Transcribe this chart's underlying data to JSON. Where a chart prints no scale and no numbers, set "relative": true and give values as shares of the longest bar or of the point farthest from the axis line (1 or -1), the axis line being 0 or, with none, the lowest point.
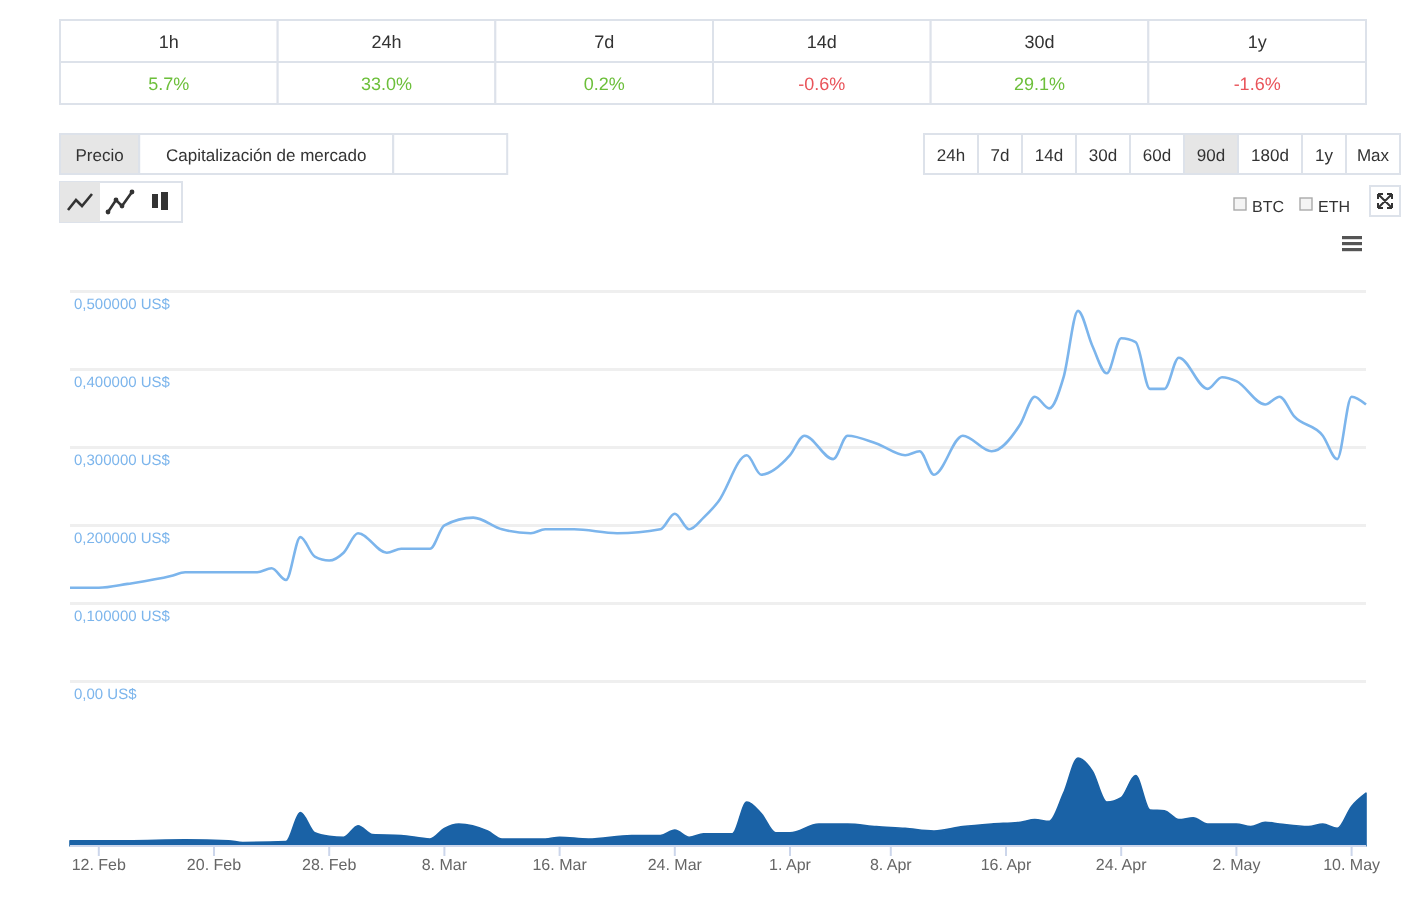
{
  "chart_data": [
    {
      "type": "other",
      "categories": [
        "1h",
        "24h",
        "7d",
        "14d",
        "30d",
        "1y"
      ],
      "values": [
        5.7,
        33.0,
        0.2,
        -0.6,
        29.1,
        -1.6
      ],
      "value_labels": [
        "5.7%",
        "33.0%",
        "0.2%",
        "-0.6%",
        "29.1%",
        "-1.6%"
      ]
    },
    {
      "type": "other",
      "annotations": [
        "Precio",
        "Capitalización de mercado",
        "24h",
        "7d",
        "14d",
        "30d",
        "60d",
        "90d",
        "180d",
        "1y",
        "Max",
        "BTC",
        "ETH"
      ]
    },
    {
      "type": "line",
      "color": "#7cb5ec",
      "xlim": [
        "--02-10",
        "--05-11"
      ],
      "ylim": [
        0,
        0.5
      ],
      "grid": "y",
      "tick_labels": "y",
      "yticks": [
        {
          "value": 0,
          "label": "0,00 US$"
        },
        {
          "value": 0.1,
          "label": "0,100000 US$"
        },
        {
          "value": 0.2,
          "label": "0,200000 US$"
        },
        {
          "value": 0.3,
          "label": "0,300000 US$"
        },
        {
          "value": 0.4,
          "label": "0,400000 US$"
        },
        {
          "value": 0.5,
          "label": "0,500000 US$"
        }
      ],
      "x": [
        "--02-10",
        "--02-12",
        "--02-14",
        "--02-17",
        "--02-18",
        "--02-20",
        "--02-23",
        "--02-24",
        "--02-25",
        "--02-26",
        "--02-27",
        "--02-28",
        "--03-01",
        "--03-02",
        "--03-04",
        "--03-05",
        "--03-07",
        "--03-08",
        "--03-10",
        "--03-12",
        "--03-14",
        "--03-15",
        "--03-17",
        "--03-20",
        "--03-23",
        "--03-24",
        "--03-25",
        "--03-26",
        "--03-27",
        "--03-29",
        "--03-30",
        "--04-01",
        "--04-02",
        "--04-04",
        "--04-05",
        "--04-07",
        "--04-09",
        "--04-10",
        "--04-11",
        "--04-13",
        "--04-15",
        "--04-17",
        "--04-18",
        "--04-19",
        "--04-20",
        "--04-21",
        "--04-22",
        "--04-23",
        "--04-24",
        "--04-25",
        "--04-26",
        "--04-27",
        "--04-28",
        "--04-30",
        "--05-01",
        "--05-02",
        "--05-04",
        "--05-05",
        "--05-06",
        "--05-08",
        "--05-09",
        "--05-10",
        "--05-11"
      ],
      "values": [
        0.12,
        0.12,
        0.125,
        0.135,
        0.14,
        0.14,
        0.14,
        0.145,
        0.13,
        0.185,
        0.16,
        0.155,
        0.165,
        0.19,
        0.165,
        0.17,
        0.17,
        0.2,
        0.21,
        0.195,
        0.19,
        0.195,
        0.195,
        0.19,
        0.195,
        0.215,
        0.195,
        0.21,
        0.23,
        0.29,
        0.265,
        0.29,
        0.315,
        0.285,
        0.315,
        0.305,
        0.29,
        0.295,
        0.265,
        0.315,
        0.295,
        0.33,
        0.365,
        0.35,
        0.39,
        0.475,
        0.43,
        0.395,
        0.44,
        0.435,
        0.375,
        0.375,
        0.415,
        0.375,
        0.39,
        0.385,
        0.355,
        0.365,
        0.34,
        0.315,
        0.285,
        0.365,
        0.355
      ]
    },
    {
      "type": "area",
      "relative": true,
      "color": "#1a62a6",
      "xlim": [
        "--02-10",
        "--05-11"
      ],
      "tick_labels": "x",
      "xticks": [
        {
          "value": "--02-12",
          "label": "12. Feb"
        },
        {
          "value": "--02-20",
          "label": "20. Feb"
        },
        {
          "value": "--02-28",
          "label": "28. Feb"
        },
        {
          "value": "--03-08",
          "label": "8. Mar"
        },
        {
          "value": "--03-16",
          "label": "16. Mar"
        },
        {
          "value": "--03-24",
          "label": "24. Mar"
        },
        {
          "value": "--04-01",
          "label": "1. Apr"
        },
        {
          "value": "--04-08",
          "label": "8. Apr"
        },
        {
          "value": "--04-16",
          "label": "16. Apr"
        },
        {
          "value": "--04-24",
          "label": "24. Apr"
        },
        {
          "value": "--05-02",
          "label": "2. May"
        },
        {
          "value": "--05-10",
          "label": "10. May"
        }
      ],
      "x": [
        "--02-10",
        "--02-14",
        "--02-18",
        "--02-21",
        "--02-22",
        "--02-25",
        "--02-26",
        "--02-27",
        "--02-28",
        "--03-01",
        "--03-02",
        "--03-03",
        "--03-05",
        "--03-07",
        "--03-08",
        "--03-09",
        "--03-11",
        "--03-12",
        "--03-15",
        "--03-16",
        "--03-18",
        "--03-21",
        "--03-23",
        "--03-24",
        "--03-25",
        "--03-26",
        "--03-28",
        "--03-29",
        "--03-30",
        "--03-31",
        "--04-01",
        "--04-03",
        "--04-05",
        "--04-07",
        "--04-09",
        "--04-11",
        "--04-13",
        "--04-15",
        "--04-17",
        "--04-18",
        "--04-19",
        "--04-20",
        "--04-21",
        "--04-22",
        "--04-23",
        "--04-24",
        "--04-25",
        "--04-26",
        "--04-27",
        "--04-28",
        "--04-29",
        "--04-30",
        "--05-02",
        "--05-03",
        "--05-04",
        "--05-05",
        "--05-07",
        "--05-08",
        "--05-09",
        "--05-10",
        "--05-11"
      ],
      "values": [
        0.06,
        0.06,
        0.07,
        0.06,
        0.04,
        0.05,
        0.38,
        0.15,
        0.11,
        0.1,
        0.23,
        0.13,
        0.12,
        0.08,
        0.2,
        0.25,
        0.17,
        0.08,
        0.08,
        0.1,
        0.08,
        0.12,
        0.12,
        0.18,
        0.1,
        0.14,
        0.14,
        0.5,
        0.37,
        0.15,
        0.15,
        0.25,
        0.25,
        0.22,
        0.2,
        0.17,
        0.22,
        0.25,
        0.27,
        0.3,
        0.28,
        0.6,
        1,
        0.85,
        0.5,
        0.55,
        0.8,
        0.41,
        0.4,
        0.3,
        0.32,
        0.25,
        0.25,
        0.22,
        0.27,
        0.25,
        0.22,
        0.25,
        0.2,
        0.45,
        0.6
      ]
    }
  ]
}
